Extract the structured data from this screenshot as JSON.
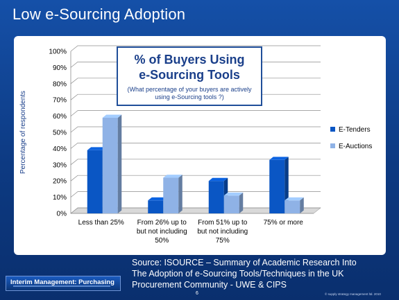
{
  "slide": {
    "title": "Low e-Sourcing Adoption",
    "source_lines": [
      "Source: ISOURCE – Summary of Academic Research Into",
      "The Adoption of e-Sourcing Tools/Techniques in the UK",
      "Procurement Community - UWE & CIPS"
    ],
    "logo_text": "Interim Management: Purchasing",
    "page_number": "6",
    "copyright": "© supply strategy management ltd. 2010"
  },
  "chart_data": {
    "type": "bar",
    "title_lines": [
      "% of Buyers Using",
      "e-Sourcing Tools"
    ],
    "subtitle_lines": [
      "(What percentage of your buyers are actively",
      "using e-Sourcing tools ?)"
    ],
    "xlabel": "",
    "ylabel": "Percentage of respondents",
    "ylim": [
      0,
      100
    ],
    "yticks": [
      "0%",
      "10%",
      "20%",
      "30%",
      "40%",
      "50%",
      "60%",
      "70%",
      "80%",
      "90%",
      "100%"
    ],
    "categories": [
      [
        "Less than 25%"
      ],
      [
        "From 26% up to",
        "but not including",
        "50%"
      ],
      [
        "From 51% up to",
        "but not including",
        "75%"
      ],
      [
        "75% or more"
      ]
    ],
    "series": [
      {
        "name": "E-Tenders",
        "values": [
          39,
          8,
          20,
          33
        ],
        "color": "#0a56c4"
      },
      {
        "name": "E-Auctions",
        "values": [
          59,
          22,
          11,
          8
        ],
        "color": "#8fb2e6"
      }
    ],
    "grid": true,
    "legend_position": "right"
  }
}
